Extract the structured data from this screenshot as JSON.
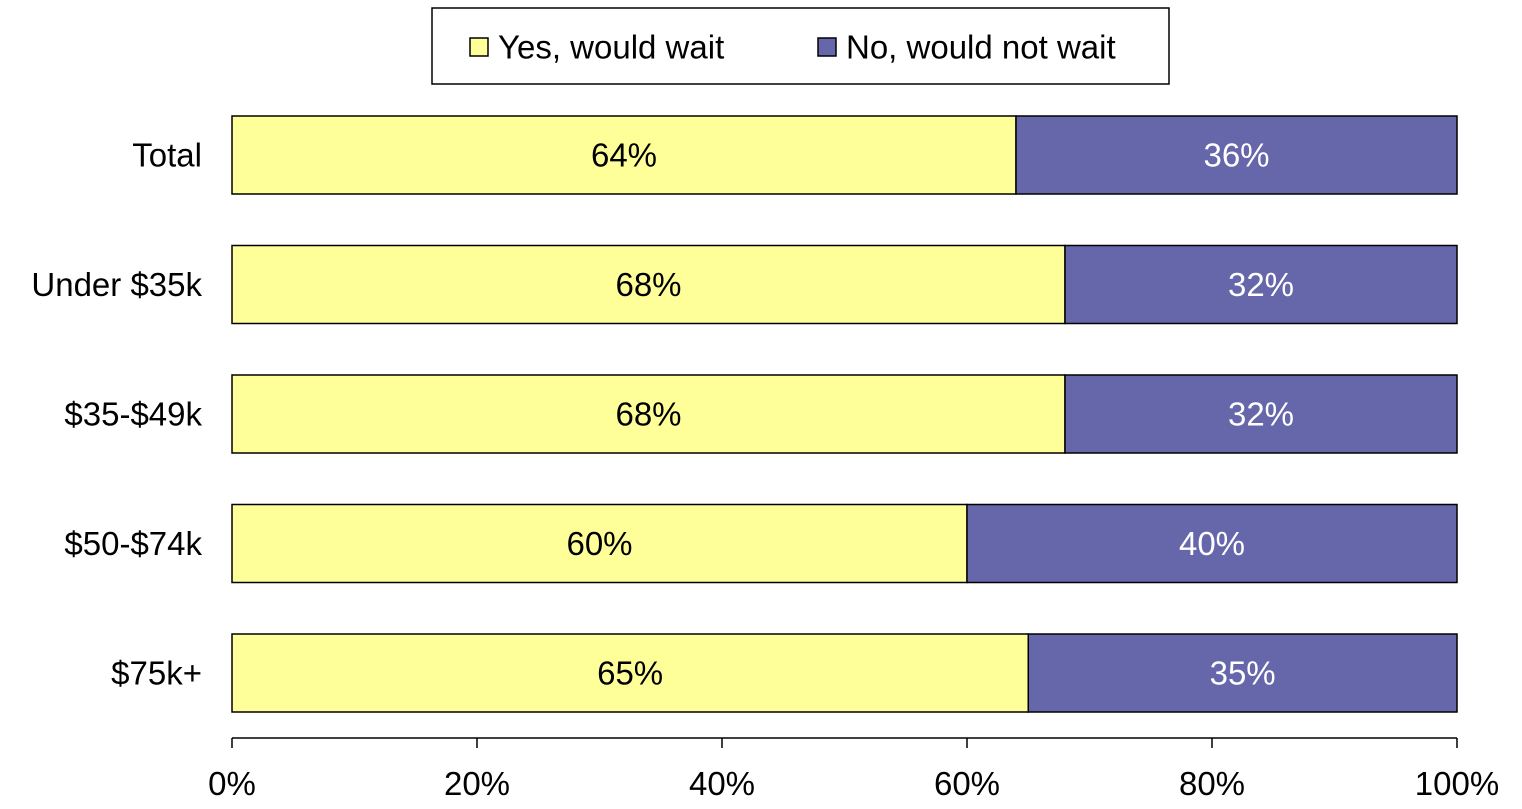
{
  "chart_data": {
    "type": "bar",
    "orientation": "horizontal",
    "stacked": "percent",
    "categories": [
      "Total",
      "Under $35k",
      "$35-$49k",
      "$50-$74k",
      "$75k+"
    ],
    "series": [
      {
        "name": "Yes, would wait",
        "values": [
          64,
          68,
          68,
          60,
          65
        ],
        "labels": [
          "64%",
          "68%",
          "68%",
          "60%",
          "65%"
        ],
        "color": "#FFFF99",
        "label_color": "#000000"
      },
      {
        "name": "No, would not wait",
        "values": [
          36,
          32,
          32,
          40,
          35
        ],
        "labels": [
          "36%",
          "32%",
          "32%",
          "40%",
          "35%"
        ],
        "color": "#6666AA",
        "label_color": "#FFFFFF"
      }
    ],
    "xlim": [
      0,
      100
    ],
    "xticks": [
      0,
      20,
      40,
      60,
      80,
      100
    ],
    "xtick_labels": [
      "0%",
      "20%",
      "40%",
      "60%",
      "80%",
      "100%"
    ],
    "title": "",
    "xlabel": "",
    "ylabel": "",
    "grid": false,
    "legend_position": "top-center"
  }
}
